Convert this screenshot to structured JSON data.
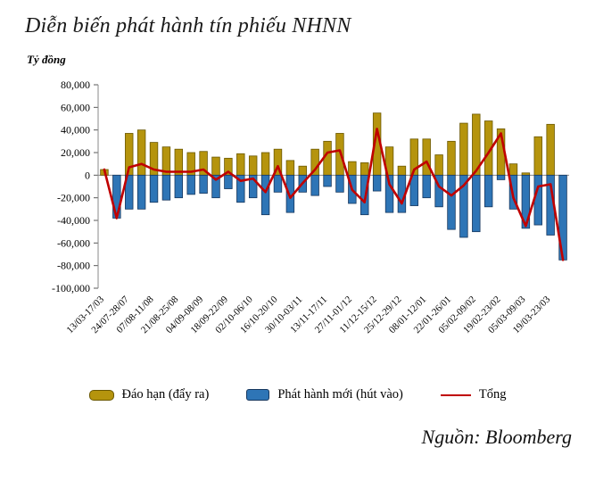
{
  "page": {
    "title": "Diễn biến phát hành tín phiếu NHNN",
    "source": "Nguồn: Bloomberg"
  },
  "chart_data": {
    "type": "bar",
    "subtype": "combo-bar-line",
    "title": "Diễn biến phát hành tín phiếu NHNN",
    "ylabel": "Tỷ đồng",
    "xlabel": "",
    "ylim": [
      -100000,
      80000
    ],
    "ytick_step": 20000,
    "grid": false,
    "legend_position": "bottom",
    "x_tick_every": 2,
    "x_tick_labels": [
      "13/03-17/03",
      "24/07-28/07",
      "07/08-11/08",
      "21/08-25/08",
      "04/09-08/09",
      "18/09-22/09",
      "02/10-06/10",
      "16/10-20/10",
      "30/10-03/11",
      "13/11-17/11",
      "27/11-01/12",
      "11/12-15/12",
      "25/12-29/12",
      "08/01-12/01",
      "22/01-26/01",
      "05/02-09/02",
      "19/02-23/02",
      "05/03-09/03",
      "19/03-23/03"
    ],
    "series": [
      {
        "name": "Đáo hạn (đẩy ra)",
        "type": "bar",
        "color": "#B5940D",
        "border": "#6B5800",
        "values": [
          5000,
          0,
          37000,
          40000,
          29000,
          25000,
          23000,
          20000,
          21000,
          16000,
          15000,
          19000,
          17000,
          20000,
          23000,
          13000,
          8000,
          23000,
          30000,
          37000,
          12000,
          11000,
          55000,
          25000,
          8000,
          32000,
          32000,
          18000,
          30000,
          46000,
          54000,
          48000,
          41000,
          10000,
          2000,
          34000,
          45000,
          0
        ]
      },
      {
        "name": "Phát hành mới (hút vào)",
        "type": "bar",
        "color": "#2E75B6",
        "border": "#17375E",
        "values": [
          0,
          -38000,
          -30000,
          -30000,
          -24000,
          -22000,
          -20000,
          -17000,
          -16000,
          -20000,
          -12000,
          -24000,
          -20000,
          -35000,
          -15000,
          -33000,
          -15000,
          -18000,
          -10000,
          -15000,
          -25000,
          -35000,
          -14000,
          -33000,
          -33000,
          -27000,
          -20000,
          -28000,
          -48000,
          -55000,
          -50000,
          -28000,
          -4000,
          -30000,
          -47000,
          -44000,
          -53000,
          -75000
        ]
      },
      {
        "name": "Tổng",
        "type": "line",
        "color": "#C00000",
        "values": [
          5000,
          -38000,
          7000,
          10000,
          5000,
          3000,
          3000,
          3000,
          5000,
          -4000,
          3000,
          -5000,
          -3000,
          -15000,
          8000,
          -20000,
          -7000,
          5000,
          20000,
          22000,
          -13000,
          -24000,
          41000,
          -8000,
          -25000,
          5000,
          12000,
          -10000,
          -18000,
          -9000,
          4000,
          20000,
          37000,
          -20000,
          -45000,
          -10000,
          -8000,
          -75000
        ]
      }
    ]
  }
}
